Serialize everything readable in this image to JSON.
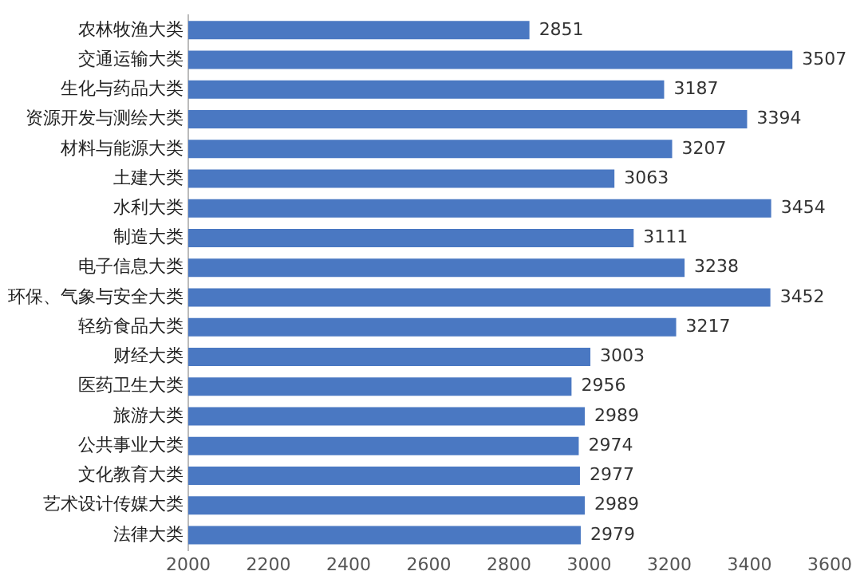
{
  "chart_data": {
    "type": "bar",
    "orientation": "horizontal",
    "categories": [
      "农林牧渔大类",
      "交通运输大类",
      "生化与药品大类",
      "资源开发与测绘大类",
      "材料与能源大类",
      "土建大类",
      "水利大类",
      "制造大类",
      "电子信息大类",
      "环保、气象与安全大类",
      "轻纺食品大类",
      "财经大类",
      "医药卫生大类",
      "旅游大类",
      "公共事业大类",
      "文化教育大类",
      "艺术设计传媒大类",
      "法律大类"
    ],
    "values": [
      2851,
      3507,
      3187,
      3394,
      3207,
      3063,
      3454,
      3111,
      3238,
      3452,
      3217,
      3003,
      2956,
      2989,
      2974,
      2977,
      2989,
      2979
    ],
    "color": "#4a78c2",
    "data_labels": true,
    "grid": false,
    "legend": false,
    "xlim": [
      2000,
      3600
    ],
    "xticks": [
      2000,
      2200,
      2400,
      2600,
      2800,
      3000,
      3200,
      3400,
      3600
    ]
  }
}
